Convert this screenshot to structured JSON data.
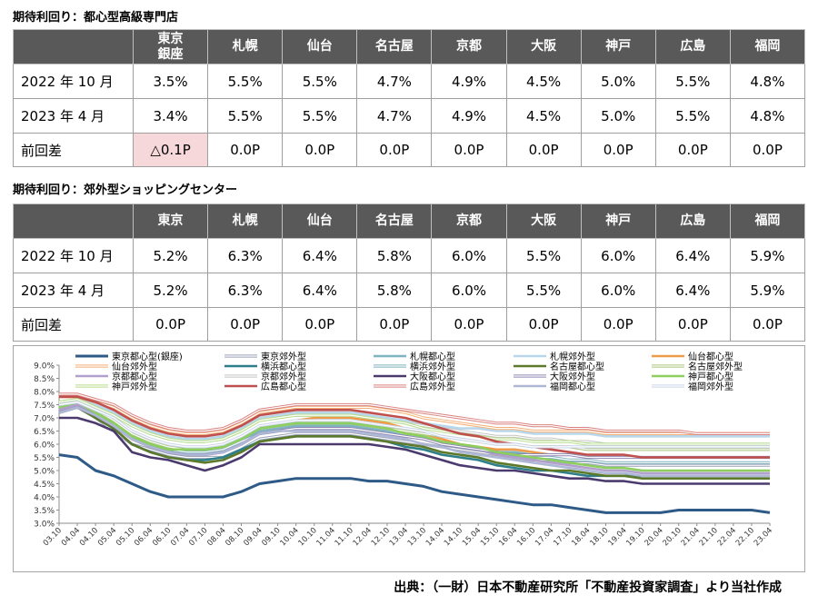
{
  "table1": {
    "title": "期待利回り：都心型高級専門店",
    "headers": [
      "東京\n銀座",
      "札幌",
      "仙台",
      "名古屋",
      "京都",
      "大阪",
      "神戸",
      "広島",
      "福岡"
    ],
    "rows": [
      {
        "label": "2022 年 10 月",
        "values": [
          "3.5%",
          "5.5%",
          "5.5%",
          "4.7%",
          "4.9%",
          "4.5%",
          "5.0%",
          "5.5%",
          "4.8%"
        ]
      },
      {
        "label": "2023 年 4 月",
        "values": [
          "3.4%",
          "5.5%",
          "5.5%",
          "4.7%",
          "4.9%",
          "4.5%",
          "5.0%",
          "5.5%",
          "4.8%"
        ]
      },
      {
        "label": "前回差",
        "values": [
          "△0.1P",
          "0.0P",
          "0.0P",
          "0.0P",
          "0.0P",
          "0.0P",
          "0.0P",
          "0.0P",
          "0.0P"
        ]
      }
    ]
  },
  "table2": {
    "title": "期待利回り：郊外型ショッピングセンター",
    "headers": [
      "東京",
      "札幌",
      "仙台",
      "名古屋",
      "京都",
      "大阪",
      "神戸",
      "広島",
      "福岡"
    ],
    "rows": [
      {
        "label": "2022 年 10 月",
        "values": [
          "5.2%",
          "6.3%",
          "6.4%",
          "5.8%",
          "6.0%",
          "5.5%",
          "6.0%",
          "6.4%",
          "5.9%"
        ]
      },
      {
        "label": "2023 年 4 月",
        "values": [
          "5.2%",
          "6.3%",
          "6.4%",
          "5.8%",
          "6.0%",
          "5.5%",
          "6.0%",
          "6.4%",
          "5.9%"
        ]
      },
      {
        "label": "前回差",
        "values": [
          "0.0P",
          "0.0P",
          "0.0P",
          "0.0P",
          "0.0P",
          "0.0P",
          "0.0P",
          "0.0P",
          "0.0P"
        ]
      }
    ]
  },
  "chart_data": {
    "type": "line",
    "title": "",
    "xlabel": "",
    "ylabel": "",
    "ylim": [
      3.0,
      9.0
    ],
    "y_ticks": [
      "3.0%",
      "3.5%",
      "4.0%",
      "4.5%",
      "5.0%",
      "5.5%",
      "6.0%",
      "6.5%",
      "7.0%",
      "7.5%",
      "8.0%",
      "8.5%",
      "9.0%"
    ],
    "grid": false,
    "legend": "top",
    "categories": [
      "03.10",
      "04.04",
      "04.10",
      "05.04",
      "05.10",
      "06.04",
      "06.10",
      "07.04",
      "07.10",
      "08.04",
      "08.10",
      "09.04",
      "09.10",
      "10.04",
      "10.10",
      "11.04",
      "11.10",
      "12.04",
      "12.10",
      "13.04",
      "13.10",
      "14.04",
      "14.10",
      "15.04",
      "15.10",
      "16.04",
      "16.10",
      "17.04",
      "17.10",
      "18.04",
      "18.10",
      "19.04",
      "19.10",
      "20.04",
      "20.10",
      "21.04",
      "21.10",
      "22.04",
      "22.10",
      "23.04"
    ],
    "series": [
      {
        "name": "東京都心型(銀座)",
        "color": "#2e5a88",
        "width": 3,
        "values": [
          5.6,
          5.5,
          5.0,
          4.8,
          4.5,
          4.2,
          4.0,
          4.0,
          4.0,
          4.0,
          4.2,
          4.5,
          4.6,
          4.7,
          4.7,
          4.7,
          4.7,
          4.6,
          4.6,
          4.5,
          4.4,
          4.2,
          4.1,
          4.0,
          3.9,
          3.8,
          3.7,
          3.7,
          3.6,
          3.5,
          3.4,
          3.4,
          3.4,
          3.4,
          3.5,
          3.5,
          3.5,
          3.5,
          3.5,
          3.4
        ]
      },
      {
        "name": "東京郊外型",
        "color": "#9aa0b8",
        "width": 1.6,
        "double": true,
        "values": [
          7.3,
          7.5,
          7.0,
          6.5,
          6.0,
          5.8,
          5.6,
          5.5,
          5.5,
          5.5,
          5.8,
          6.2,
          6.3,
          6.4,
          6.4,
          6.4,
          6.4,
          6.3,
          6.2,
          6.1,
          6.0,
          5.9,
          5.8,
          5.7,
          5.6,
          5.5,
          5.4,
          5.4,
          5.3,
          5.3,
          5.2,
          5.2,
          5.2,
          5.2,
          5.2,
          5.2,
          5.2,
          5.2,
          5.2,
          5.2
        ]
      },
      {
        "name": "札幌都心型",
        "color": "#7fb3bf",
        "width": 2.6,
        "values": [
          7.3,
          7.5,
          7.2,
          6.8,
          6.3,
          6.0,
          5.8,
          5.7,
          5.7,
          5.8,
          6.1,
          6.5,
          6.6,
          6.7,
          6.7,
          6.7,
          6.7,
          6.6,
          6.5,
          6.3,
          6.2,
          6.0,
          5.9,
          5.8,
          5.7,
          5.7,
          5.6,
          5.6,
          5.6,
          5.5,
          5.5,
          5.5,
          5.5,
          5.5,
          5.5,
          5.5,
          5.5,
          5.5,
          5.5,
          5.5
        ]
      },
      {
        "name": "札幌郊外型",
        "color": "#b8d7ea",
        "width": 2.6,
        "values": [
          7.6,
          7.7,
          7.5,
          7.2,
          6.8,
          6.5,
          6.3,
          6.2,
          6.2,
          6.3,
          6.6,
          7.0,
          7.1,
          7.2,
          7.2,
          7.2,
          7.2,
          7.1,
          7.0,
          6.9,
          6.8,
          6.7,
          6.6,
          6.6,
          6.5,
          6.5,
          6.4,
          6.4,
          6.4,
          6.4,
          6.3,
          6.3,
          6.3,
          6.3,
          6.3,
          6.3,
          6.3,
          6.3,
          6.3,
          6.3
        ]
      },
      {
        "name": "仙台都心型",
        "color": "#ed9a4a",
        "width": 2.6,
        "values": [
          7.5,
          7.6,
          7.4,
          7.0,
          6.5,
          6.2,
          6.0,
          5.9,
          5.9,
          6.0,
          6.3,
          6.7,
          6.8,
          6.9,
          7.0,
          7.0,
          7.0,
          6.9,
          6.8,
          6.6,
          6.4,
          6.2,
          6.0,
          5.9,
          5.8,
          5.8,
          5.7,
          5.6,
          5.6,
          5.5,
          5.5,
          5.5,
          5.5,
          5.5,
          5.5,
          5.5,
          5.5,
          5.5,
          5.5,
          5.5
        ]
      },
      {
        "name": "仙台郊外型",
        "color": "#f2ae74",
        "width": 1.6,
        "double": true,
        "values": [
          7.8,
          7.8,
          7.6,
          7.4,
          7.0,
          6.7,
          6.5,
          6.4,
          6.4,
          6.5,
          6.8,
          7.2,
          7.3,
          7.4,
          7.4,
          7.4,
          7.4,
          7.4,
          7.3,
          7.2,
          7.0,
          6.9,
          6.8,
          6.7,
          6.6,
          6.6,
          6.5,
          6.5,
          6.5,
          6.5,
          6.4,
          6.4,
          6.4,
          6.4,
          6.4,
          6.4,
          6.4,
          6.4,
          6.4,
          6.4
        ]
      },
      {
        "name": "横浜都心型",
        "color": "#2d7f8a",
        "width": 2.6,
        "values": [
          7.2,
          7.4,
          7.0,
          6.6,
          6.0,
          5.7,
          5.5,
          5.4,
          5.4,
          5.5,
          5.8,
          6.1,
          6.2,
          6.3,
          6.3,
          6.3,
          6.3,
          6.2,
          6.1,
          5.9,
          5.8,
          5.6,
          5.5,
          5.4,
          5.2,
          5.1,
          5.0,
          5.0,
          4.9,
          4.8,
          4.8,
          4.8,
          4.8,
          4.8,
          4.8,
          4.8,
          4.8,
          4.8,
          4.8,
          4.8
        ]
      },
      {
        "name": "横浜郊外型",
        "color": "#7eb0bd",
        "width": 1.6,
        "double": true,
        "values": [
          7.4,
          7.6,
          7.2,
          6.8,
          6.3,
          6.0,
          5.8,
          5.7,
          5.7,
          5.8,
          6.1,
          6.4,
          6.5,
          6.6,
          6.6,
          6.6,
          6.6,
          6.5,
          6.4,
          6.3,
          6.2,
          6.0,
          5.9,
          5.8,
          5.7,
          5.6,
          5.5,
          5.5,
          5.4,
          5.4,
          5.3,
          5.3,
          5.3,
          5.3,
          5.3,
          5.3,
          5.3,
          5.3,
          5.3,
          5.3
        ]
      },
      {
        "name": "名古屋都心型",
        "color": "#5d7a2b",
        "width": 2.6,
        "values": [
          7.2,
          7.4,
          7.0,
          6.6,
          6.0,
          5.7,
          5.5,
          5.4,
          5.3,
          5.4,
          5.7,
          6.1,
          6.2,
          6.3,
          6.3,
          6.3,
          6.3,
          6.2,
          6.1,
          6.0,
          5.9,
          5.7,
          5.6,
          5.5,
          5.3,
          5.2,
          5.1,
          5.0,
          5.0,
          4.9,
          4.8,
          4.8,
          4.7,
          4.7,
          4.7,
          4.7,
          4.7,
          4.7,
          4.7,
          4.7
        ]
      },
      {
        "name": "名古屋郊外型",
        "color": "#a9c47c",
        "width": 1.6,
        "double": true,
        "values": [
          7.4,
          7.6,
          7.3,
          6.9,
          6.4,
          6.1,
          5.9,
          5.8,
          5.8,
          5.9,
          6.2,
          6.6,
          6.7,
          6.8,
          6.8,
          6.8,
          6.8,
          6.7,
          6.6,
          6.5,
          6.4,
          6.3,
          6.2,
          6.1,
          6.0,
          6.0,
          5.9,
          5.9,
          5.9,
          5.8,
          5.8,
          5.8,
          5.8,
          5.8,
          5.8,
          5.8,
          5.8,
          5.8,
          5.8,
          5.8
        ]
      },
      {
        "name": "京都都心型",
        "color": "#b1a0cc",
        "width": 2.6,
        "values": [
          7.3,
          7.5,
          7.1,
          6.7,
          6.2,
          5.9,
          5.7,
          5.6,
          5.6,
          5.7,
          6.0,
          6.4,
          6.5,
          6.6,
          6.6,
          6.6,
          6.6,
          6.5,
          6.4,
          6.3,
          6.2,
          6.0,
          5.9,
          5.8,
          5.6,
          5.5,
          5.4,
          5.3,
          5.2,
          5.1,
          5.0,
          5.0,
          4.9,
          4.9,
          4.9,
          4.9,
          4.9,
          4.9,
          4.9,
          4.9
        ]
      },
      {
        "name": "京都郊外型",
        "color": "#c4c4c4",
        "width": 1.6,
        "double": true,
        "values": [
          7.6,
          7.7,
          7.4,
          7.1,
          6.7,
          6.4,
          6.2,
          6.1,
          6.1,
          6.2,
          6.5,
          6.9,
          7.0,
          7.1,
          7.1,
          7.1,
          7.1,
          7.0,
          6.9,
          6.8,
          6.7,
          6.6,
          6.5,
          6.4,
          6.3,
          6.3,
          6.2,
          6.2,
          6.1,
          6.1,
          6.0,
          6.0,
          6.0,
          6.0,
          6.0,
          6.0,
          6.0,
          6.0,
          6.0,
          6.0
        ]
      },
      {
        "name": "大阪都心型",
        "color": "#4a3a6e",
        "width": 2.6,
        "values": [
          7.0,
          7.0,
          6.8,
          6.5,
          5.7,
          5.5,
          5.4,
          5.2,
          5.0,
          5.2,
          5.5,
          6.0,
          6.0,
          6.0,
          6.0,
          6.0,
          6.0,
          6.0,
          5.9,
          5.8,
          5.6,
          5.4,
          5.2,
          5.1,
          5.0,
          5.0,
          4.9,
          4.8,
          4.7,
          4.7,
          4.6,
          4.6,
          4.5,
          4.5,
          4.5,
          4.5,
          4.5,
          4.5,
          4.5,
          4.5
        ]
      },
      {
        "name": "大阪郊外型",
        "color": "#8f86b2",
        "width": 1.6,
        "double": true,
        "values": [
          7.2,
          7.4,
          7.1,
          6.7,
          6.2,
          5.9,
          5.7,
          5.6,
          5.6,
          5.7,
          6.0,
          6.4,
          6.5,
          6.6,
          6.6,
          6.6,
          6.6,
          6.5,
          6.4,
          6.3,
          6.2,
          6.0,
          5.9,
          5.8,
          5.7,
          5.6,
          5.6,
          5.6,
          5.6,
          5.5,
          5.5,
          5.5,
          5.5,
          5.5,
          5.5,
          5.5,
          5.5,
          5.5,
          5.5,
          5.5
        ]
      },
      {
        "name": "神戸都心型",
        "color": "#8ccf5e",
        "width": 2.6,
        "values": [
          7.4,
          7.6,
          7.2,
          6.8,
          6.3,
          6.0,
          5.8,
          5.8,
          5.8,
          5.9,
          6.2,
          6.6,
          6.7,
          6.8,
          6.8,
          6.8,
          6.8,
          6.7,
          6.6,
          6.4,
          6.3,
          6.1,
          6.0,
          5.9,
          5.7,
          5.6,
          5.5,
          5.4,
          5.3,
          5.2,
          5.1,
          5.1,
          5.0,
          5.0,
          5.0,
          5.0,
          5.0,
          5.0,
          5.0,
          5.0
        ]
      },
      {
        "name": "神戸郊外型",
        "color": "#b6dd8a",
        "width": 1.6,
        "double": true,
        "values": [
          7.6,
          7.7,
          7.4,
          7.1,
          6.7,
          6.4,
          6.2,
          6.1,
          6.1,
          6.2,
          6.5,
          6.9,
          7.0,
          7.1,
          7.1,
          7.1,
          7.1,
          7.0,
          6.9,
          6.8,
          6.6,
          6.5,
          6.4,
          6.3,
          6.2,
          6.2,
          6.1,
          6.1,
          6.1,
          6.0,
          6.0,
          6.0,
          6.0,
          6.0,
          6.0,
          6.0,
          6.0,
          6.0,
          6.0,
          6.0
        ]
      },
      {
        "name": "広島都心型",
        "color": "#c0504d",
        "width": 2.6,
        "values": [
          7.8,
          7.8,
          7.6,
          7.3,
          6.9,
          6.6,
          6.4,
          6.3,
          6.3,
          6.4,
          6.7,
          7.1,
          7.2,
          7.3,
          7.3,
          7.3,
          7.3,
          7.2,
          7.1,
          7.0,
          6.8,
          6.6,
          6.4,
          6.3,
          6.1,
          6.0,
          5.9,
          5.8,
          5.7,
          5.6,
          5.6,
          5.6,
          5.5,
          5.5,
          5.5,
          5.5,
          5.5,
          5.5,
          5.5,
          5.5
        ]
      },
      {
        "name": "広島郊外型",
        "color": "#d9827f",
        "width": 1.6,
        "double": true,
        "values": [
          7.9,
          7.9,
          7.7,
          7.5,
          7.1,
          6.8,
          6.6,
          6.5,
          6.5,
          6.6,
          6.9,
          7.3,
          7.4,
          7.5,
          7.5,
          7.5,
          7.5,
          7.5,
          7.4,
          7.3,
          7.2,
          7.1,
          7.0,
          6.9,
          6.8,
          6.8,
          6.7,
          6.7,
          6.6,
          6.6,
          6.5,
          6.5,
          6.5,
          6.5,
          6.5,
          6.4,
          6.4,
          6.4,
          6.4,
          6.4
        ]
      },
      {
        "name": "福岡都心型",
        "color": "#aeb8d6",
        "width": 2.6,
        "values": [
          7.2,
          7.4,
          7.1,
          6.7,
          6.2,
          5.9,
          5.7,
          5.6,
          5.6,
          5.7,
          6.0,
          6.4,
          6.5,
          6.5,
          6.5,
          6.5,
          6.5,
          6.4,
          6.3,
          6.2,
          6.0,
          5.9,
          5.7,
          5.6,
          5.5,
          5.4,
          5.3,
          5.2,
          5.1,
          5.0,
          4.9,
          4.9,
          4.8,
          4.8,
          4.8,
          4.8,
          4.8,
          4.8,
          4.8,
          4.8
        ]
      },
      {
        "name": "福岡郊外型",
        "color": "#c9d3ea",
        "width": 1.6,
        "double": true,
        "values": [
          7.5,
          7.6,
          7.3,
          7.0,
          6.5,
          6.2,
          6.0,
          5.9,
          5.9,
          6.0,
          6.3,
          6.7,
          6.8,
          6.9,
          6.9,
          6.9,
          6.9,
          6.8,
          6.7,
          6.6,
          6.5,
          6.3,
          6.2,
          6.1,
          6.0,
          6.0,
          5.9,
          5.9,
          5.9,
          5.9,
          5.9,
          5.9,
          5.9,
          5.9,
          5.9,
          5.9,
          5.9,
          5.9,
          5.9,
          5.9
        ]
      }
    ]
  },
  "source": "出典：（一財）日本不動産研究所「不動産投資家調査」より当社作成"
}
